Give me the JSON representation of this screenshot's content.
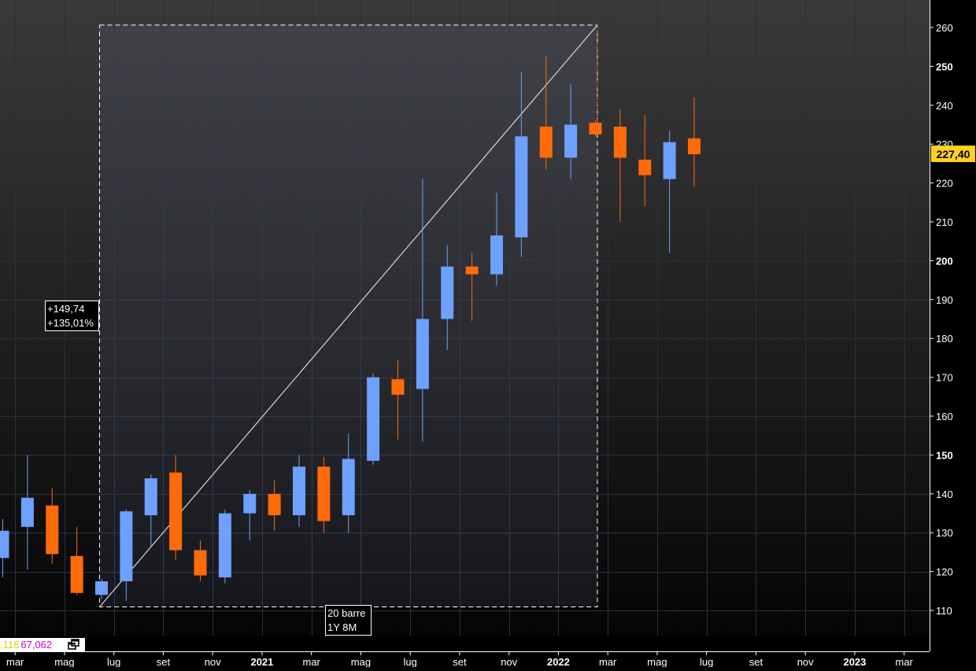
{
  "colors": {
    "up": "#6ea0ff",
    "down": "#ff6a0a",
    "price_badge": "#ffd21e",
    "grid": "#2a2f45",
    "axis_text": "#ffffff"
  },
  "price_badge": {
    "value": "227,40"
  },
  "status": {
    "value1": ",118",
    "value2": "67,062",
    "icon": "window-restore-icon"
  },
  "measure": {
    "change_abs": "+149,74",
    "change_pct": "+135,01%",
    "bars": "20 barre",
    "duration": "1Y 8M"
  },
  "chart_data": {
    "type": "candlestick",
    "interval": "monthly",
    "ylim": [
      101,
      266
    ],
    "y_ticks": [
      {
        "value": 110,
        "label": "110",
        "bold": false
      },
      {
        "value": 120,
        "label": "120",
        "bold": false
      },
      {
        "value": 130,
        "label": "130",
        "bold": false
      },
      {
        "value": 140,
        "label": "140",
        "bold": false
      },
      {
        "value": 150,
        "label": "150",
        "bold": true
      },
      {
        "value": 160,
        "label": "160",
        "bold": false
      },
      {
        "value": 170,
        "label": "170",
        "bold": false
      },
      {
        "value": 180,
        "label": "180",
        "bold": false
      },
      {
        "value": 190,
        "label": "190",
        "bold": false
      },
      {
        "value": 200,
        "label": "200",
        "bold": true
      },
      {
        "value": 210,
        "label": "210",
        "bold": false
      },
      {
        "value": 220,
        "label": "220",
        "bold": false
      },
      {
        "value": 230,
        "label": "230",
        "bold": false
      },
      {
        "value": 240,
        "label": "240",
        "bold": false
      },
      {
        "value": 250,
        "label": "250",
        "bold": true
      },
      {
        "value": 260,
        "label": "260",
        "bold": false
      }
    ],
    "x_ticks": [
      {
        "index": 0.5,
        "label": "mar",
        "bold": false
      },
      {
        "index": 2.5,
        "label": "mag",
        "bold": false
      },
      {
        "index": 4.5,
        "label": "lug",
        "bold": false
      },
      {
        "index": 6.5,
        "label": "set",
        "bold": false
      },
      {
        "index": 8.5,
        "label": "nov",
        "bold": false
      },
      {
        "index": 10.5,
        "label": "2021",
        "bold": true
      },
      {
        "index": 12.5,
        "label": "mar",
        "bold": false
      },
      {
        "index": 14.5,
        "label": "mag",
        "bold": false
      },
      {
        "index": 16.5,
        "label": "lug",
        "bold": false
      },
      {
        "index": 18.5,
        "label": "set",
        "bold": false
      },
      {
        "index": 20.5,
        "label": "nov",
        "bold": false
      },
      {
        "index": 22.5,
        "label": "2022",
        "bold": true
      },
      {
        "index": 24.5,
        "label": "mar",
        "bold": false
      },
      {
        "index": 26.5,
        "label": "mag",
        "bold": false
      },
      {
        "index": 28.5,
        "label": "lug",
        "bold": false
      },
      {
        "index": 30.5,
        "label": "set",
        "bold": false
      },
      {
        "index": 32.5,
        "label": "nov",
        "bold": false
      },
      {
        "index": 34.5,
        "label": "2023",
        "bold": true
      },
      {
        "index": 36.5,
        "label": "mar",
        "bold": false
      }
    ],
    "candles": [
      {
        "i": 0,
        "open": 123.5,
        "high": 133.5,
        "low": 118.5,
        "close": 130.5
      },
      {
        "i": 1,
        "open": 131.5,
        "high": 150.0,
        "low": 120.5,
        "close": 139.0
      },
      {
        "i": 2,
        "open": 137.0,
        "high": 141.5,
        "low": 122.0,
        "close": 124.5
      },
      {
        "i": 3,
        "open": 124.0,
        "high": 131.5,
        "low": 114.0,
        "close": 114.5
      },
      {
        "i": 4,
        "open": 114.0,
        "high": 118.0,
        "low": 113.0,
        "close": 117.5
      },
      {
        "i": 5,
        "open": 117.5,
        "high": 136.0,
        "low": 112.5,
        "close": 135.5
      },
      {
        "i": 6,
        "open": 134.5,
        "high": 145.0,
        "low": 126.5,
        "close": 144.0
      },
      {
        "i": 7,
        "open": 145.5,
        "high": 150.0,
        "low": 123.0,
        "close": 125.5
      },
      {
        "i": 8,
        "open": 125.5,
        "high": 128.0,
        "low": 117.5,
        "close": 119.0
      },
      {
        "i": 9,
        "open": 118.5,
        "high": 136.0,
        "low": 117.0,
        "close": 135.0
      },
      {
        "i": 10,
        "open": 135.0,
        "high": 141.0,
        "low": 128.0,
        "close": 140.0
      },
      {
        "i": 11,
        "open": 140.0,
        "high": 143.5,
        "low": 130.5,
        "close": 134.5
      },
      {
        "i": 12,
        "open": 134.5,
        "high": 150.0,
        "low": 131.5,
        "close": 147.0
      },
      {
        "i": 13,
        "open": 147.0,
        "high": 149.5,
        "low": 130.0,
        "close": 133.0
      },
      {
        "i": 14,
        "open": 134.5,
        "high": 155.5,
        "low": 130.0,
        "close": 149.0
      },
      {
        "i": 15,
        "open": 148.5,
        "high": 171.0,
        "low": 147.5,
        "close": 170.0
      },
      {
        "i": 16,
        "open": 169.5,
        "high": 174.5,
        "low": 154.0,
        "close": 165.5
      },
      {
        "i": 17,
        "open": 167.0,
        "high": 221.0,
        "low": 153.5,
        "close": 185.0
      },
      {
        "i": 18,
        "open": 185.0,
        "high": 204.0,
        "low": 177.0,
        "close": 198.5
      },
      {
        "i": 19,
        "open": 198.5,
        "high": 202.0,
        "low": 184.5,
        "close": 196.5
      },
      {
        "i": 20,
        "open": 196.5,
        "high": 217.5,
        "low": 193.5,
        "close": 206.5
      },
      {
        "i": 21,
        "open": 206.0,
        "high": 248.5,
        "low": 201.0,
        "close": 232.0
      },
      {
        "i": 22,
        "open": 234.5,
        "high": 252.5,
        "low": 223.5,
        "close": 226.5
      },
      {
        "i": 23,
        "open": 226.5,
        "high": 245.5,
        "low": 221.0,
        "close": 235.0
      },
      {
        "i": 24,
        "open": 235.5,
        "high": 236.0,
        "low": 232.0,
        "close": 232.5
      },
      {
        "i": 25,
        "open": 234.5,
        "high": 239.0,
        "low": 210.0,
        "close": 226.5
      },
      {
        "i": 26,
        "open": 226.0,
        "high": 237.5,
        "low": 214.0,
        "close": 222.0
      },
      {
        "i": 27,
        "open": 221.0,
        "high": 233.5,
        "low": 202.0,
        "close": 230.5
      },
      {
        "i": 28,
        "open": 231.5,
        "high": 242.0,
        "low": 219.0,
        "close": 227.4
      }
    ],
    "measure_range": {
      "start_index": 4,
      "end_index": 24,
      "start_price": 110.9,
      "end_price": 260.64
    }
  }
}
